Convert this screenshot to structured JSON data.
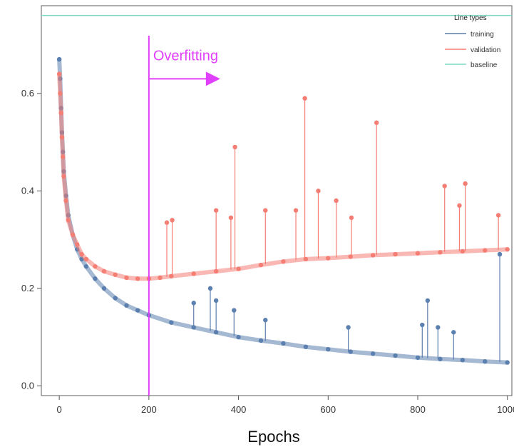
{
  "chart_data": {
    "type": "line",
    "title": "",
    "xlabel": "Epochs",
    "ylabel": "",
    "xlim": [
      -40,
      1010
    ],
    "ylim": [
      -0.02,
      0.78
    ],
    "xticks": [
      0,
      200,
      400,
      600,
      800,
      1000
    ],
    "yticks": [
      0.0,
      0.2,
      0.4,
      0.6
    ],
    "ytick_labels": [
      "0.0",
      "0.2",
      "0.4",
      "0.6"
    ],
    "grid": false,
    "legend": {
      "title": "Line types",
      "placement": "top-right",
      "entries": [
        {
          "label": "training",
          "color": "#5b7fae"
        },
        {
          "label": "validation",
          "color": "#f47d74"
        },
        {
          "label": "baseline",
          "color": "#7fd8c6"
        }
      ]
    },
    "annotation": {
      "text": "Overfitting",
      "x": 200,
      "color": "#e040fb"
    },
    "baseline": {
      "y": 0.76
    },
    "series": [
      {
        "name": "training",
        "color": "#5b7fae",
        "x": [
          0,
          2,
          4,
          6,
          8,
          10,
          15,
          20,
          30,
          40,
          50,
          60,
          80,
          100,
          125,
          150,
          175,
          200,
          250,
          300,
          350,
          400,
          450,
          500,
          550,
          600,
          650,
          700,
          750,
          800,
          850,
          900,
          950,
          1000
        ],
        "y": [
          0.67,
          0.63,
          0.57,
          0.52,
          0.48,
          0.44,
          0.39,
          0.35,
          0.31,
          0.28,
          0.26,
          0.245,
          0.22,
          0.2,
          0.18,
          0.165,
          0.155,
          0.145,
          0.13,
          0.12,
          0.11,
          0.1,
          0.093,
          0.087,
          0.08,
          0.075,
          0.07,
          0.066,
          0.062,
          0.058,
          0.055,
          0.053,
          0.05,
          0.048
        ],
        "spikes": [
          {
            "x": 300,
            "y": 0.17
          },
          {
            "x": 337,
            "y": 0.2
          },
          {
            "x": 350,
            "y": 0.175
          },
          {
            "x": 390,
            "y": 0.155
          },
          {
            "x": 460,
            "y": 0.135
          },
          {
            "x": 645,
            "y": 0.12
          },
          {
            "x": 810,
            "y": 0.125
          },
          {
            "x": 822,
            "y": 0.175
          },
          {
            "x": 845,
            "y": 0.12
          },
          {
            "x": 880,
            "y": 0.11
          },
          {
            "x": 983,
            "y": 0.27
          }
        ]
      },
      {
        "name": "validation",
        "color": "#f47d74",
        "x": [
          0,
          2,
          4,
          6,
          8,
          10,
          15,
          20,
          30,
          40,
          50,
          60,
          80,
          100,
          125,
          150,
          175,
          200,
          225,
          250,
          300,
          350,
          400,
          450,
          500,
          550,
          600,
          650,
          700,
          750,
          800,
          850,
          900,
          950,
          1000
        ],
        "y": [
          0.64,
          0.6,
          0.56,
          0.51,
          0.47,
          0.43,
          0.38,
          0.34,
          0.31,
          0.29,
          0.27,
          0.26,
          0.245,
          0.235,
          0.228,
          0.222,
          0.22,
          0.22,
          0.222,
          0.225,
          0.23,
          0.235,
          0.24,
          0.248,
          0.255,
          0.26,
          0.262,
          0.265,
          0.268,
          0.27,
          0.272,
          0.274,
          0.276,
          0.278,
          0.28
        ],
        "spikes": [
          {
            "x": 240,
            "y": 0.335
          },
          {
            "x": 252,
            "y": 0.34
          },
          {
            "x": 350,
            "y": 0.36
          },
          {
            "x": 383,
            "y": 0.345
          },
          {
            "x": 392,
            "y": 0.49
          },
          {
            "x": 460,
            "y": 0.36
          },
          {
            "x": 528,
            "y": 0.36
          },
          {
            "x": 548,
            "y": 0.59
          },
          {
            "x": 578,
            "y": 0.4
          },
          {
            "x": 618,
            "y": 0.38
          },
          {
            "x": 652,
            "y": 0.345
          },
          {
            "x": 708,
            "y": 0.54
          },
          {
            "x": 860,
            "y": 0.41
          },
          {
            "x": 893,
            "y": 0.37
          },
          {
            "x": 906,
            "y": 0.415
          },
          {
            "x": 980,
            "y": 0.35
          }
        ]
      }
    ]
  }
}
